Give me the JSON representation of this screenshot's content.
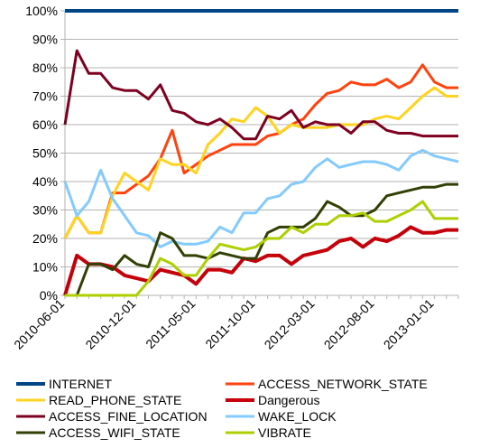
{
  "chart_data": {
    "type": "line",
    "title": "",
    "xlabel": "",
    "ylabel": "",
    "ylim": [
      0,
      100
    ],
    "y_ticks": [
      "0%",
      "10%",
      "20%",
      "30%",
      "40%",
      "50%",
      "60%",
      "70%",
      "80%",
      "90%",
      "100%"
    ],
    "x": [
      "2010-06-01",
      "2010-07-01",
      "2010-08-01",
      "2010-09-01",
      "2010-10-01",
      "2010-11-01",
      "2010-12-01",
      "2011-01-01",
      "2011-02-01",
      "2011-03-01",
      "2011-04-01",
      "2011-05-01",
      "2011-06-01",
      "2011-07-01",
      "2011-08-01",
      "2011-09-01",
      "2011-10-01",
      "2011-11-01",
      "2011-12-01",
      "2012-01-01",
      "2012-02-01",
      "2012-03-01",
      "2012-04-01",
      "2012-05-01",
      "2012-06-01",
      "2012-07-01",
      "2012-08-01",
      "2012-09-01",
      "2012-10-01",
      "2012-11-01",
      "2012-12-01",
      "2013-01-01",
      "2013-02-01",
      "2013-03-01"
    ],
    "x_tick_labels": [
      "2010-06-01",
      "2010-12-01",
      "2011-05-01",
      "2011-10-01",
      "2012-03-01",
      "2012-08-01",
      "2013-01-01"
    ],
    "grid": true,
    "legend_position": "bottom",
    "series": [
      {
        "name": "INTERNET",
        "color": "#004586",
        "width": 4,
        "values": [
          100,
          100,
          100,
          100,
          100,
          100,
          100,
          100,
          100,
          100,
          100,
          100,
          100,
          100,
          100,
          100,
          100,
          100,
          100,
          100,
          100,
          100,
          100,
          100,
          100,
          100,
          100,
          100,
          100,
          100,
          100,
          100,
          100,
          100
        ]
      },
      {
        "name": "ACCESS_NETWORK_STATE",
        "color": "#ff420e",
        "width": 3,
        "values": [
          20,
          28,
          22,
          22,
          36,
          36,
          39,
          42,
          48,
          58,
          43,
          46,
          49,
          51,
          53,
          53,
          53,
          56,
          57,
          60,
          62,
          67,
          71,
          72,
          75,
          74,
          74,
          76,
          73,
          75,
          81,
          75,
          73,
          73
        ]
      },
      {
        "name": "READ_PHONE_STATE",
        "color": "#ffd320",
        "width": 3,
        "values": [
          20,
          28,
          22,
          22,
          35,
          43,
          40,
          37,
          48,
          46,
          46,
          43,
          53,
          57,
          62,
          61,
          66,
          63,
          57,
          60,
          59,
          59,
          59,
          60,
          60,
          60,
          62,
          63,
          62,
          66,
          70,
          73,
          70,
          70
        ]
      },
      {
        "name": "Dangerous",
        "color": "#c5000b",
        "width": 4,
        "values": [
          0,
          14,
          11,
          11,
          10,
          7,
          6,
          5,
          9,
          8,
          7,
          4,
          9,
          9,
          8,
          13,
          12,
          14,
          14,
          11,
          14,
          15,
          16,
          19,
          20,
          17,
          20,
          19,
          21,
          24,
          22,
          22,
          23,
          23
        ]
      },
      {
        "name": "ACCESS_FINE_LOCATION",
        "color": "#7e0021",
        "width": 3,
        "values": [
          60,
          86,
          78,
          78,
          73,
          72,
          72,
          69,
          74,
          65,
          64,
          61,
          60,
          62,
          59,
          55,
          55,
          63,
          62,
          65,
          59,
          61,
          60,
          60,
          57,
          61,
          61,
          58,
          57,
          57,
          56,
          56,
          56,
          56
        ]
      },
      {
        "name": "WAKE_LOCK",
        "color": "#83caff",
        "width": 3,
        "values": [
          40,
          28,
          33,
          44,
          34,
          28,
          22,
          21,
          17,
          19,
          18,
          18,
          19,
          24,
          22,
          29,
          29,
          34,
          35,
          39,
          40,
          45,
          48,
          45,
          46,
          47,
          47,
          46,
          44,
          49,
          51,
          49,
          48,
          47
        ]
      },
      {
        "name": "ACCESS_WIFI_STATE",
        "color": "#314004",
        "width": 3,
        "values": [
          0,
          0,
          11,
          11,
          9,
          14,
          11,
          10,
          22,
          20,
          14,
          14,
          13,
          15,
          14,
          13,
          13,
          22,
          24,
          24,
          24,
          27,
          33,
          31,
          28,
          28,
          30,
          35,
          36,
          37,
          38,
          38,
          39,
          39
        ]
      },
      {
        "name": "VIBRATE",
        "color": "#aecf00",
        "width": 3,
        "values": [
          0,
          0,
          0,
          0,
          0,
          0,
          0,
          5,
          13,
          11,
          7,
          7,
          13,
          18,
          17,
          16,
          17,
          20,
          20,
          24,
          22,
          25,
          25,
          28,
          28,
          29,
          26,
          26,
          28,
          30,
          33,
          27,
          27,
          27
        ]
      }
    ]
  }
}
